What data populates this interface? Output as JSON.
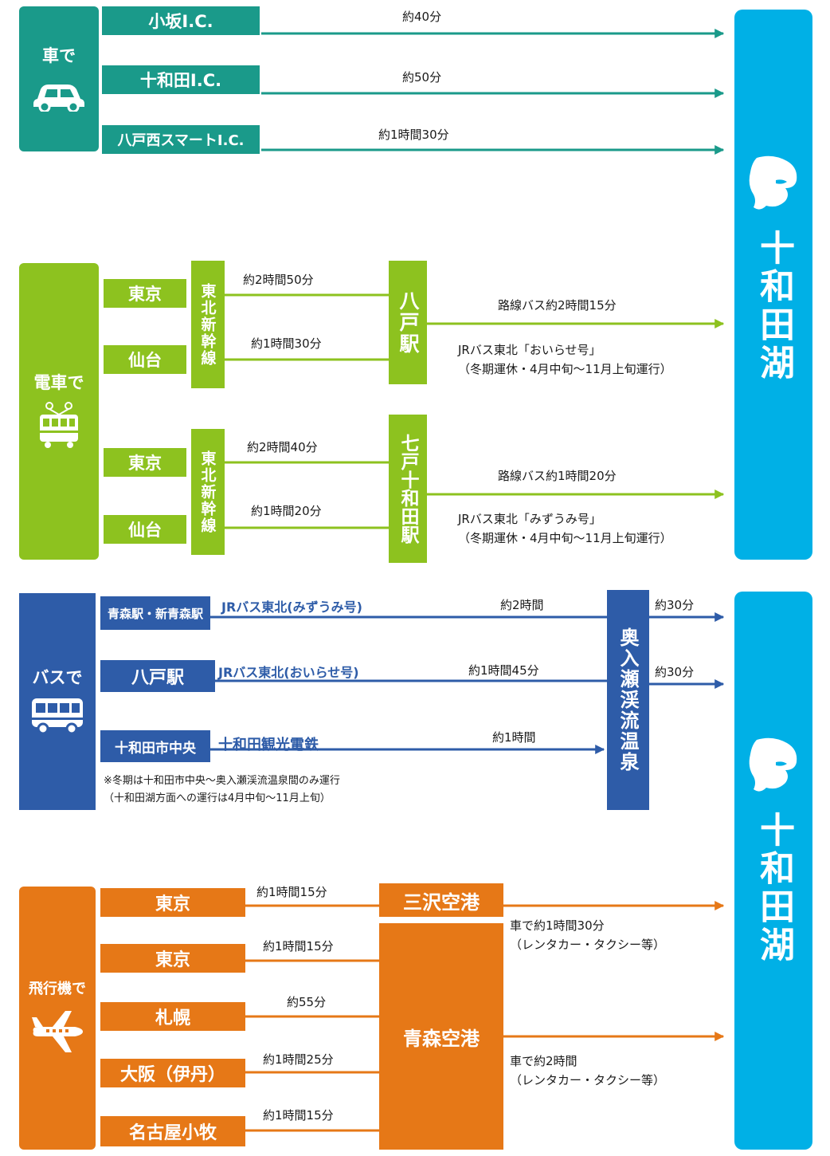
{
  "destination": {
    "name": "十和田湖",
    "icon": "mascot-icon",
    "color": "#00b0e6"
  },
  "car": {
    "label": "車で",
    "icon": "car-icon",
    "color": "#1a9a8a",
    "routes": [
      {
        "from": "小坂I.C.",
        "time": "約40分"
      },
      {
        "from": "十和田I.C.",
        "time": "約50分"
      },
      {
        "from": "八戸西スマートI.C.",
        "time": "約1時間30分"
      }
    ]
  },
  "train": {
    "label": "電車で",
    "icon": "train-icon",
    "color": "#8dc21f",
    "line": "東北新幹線",
    "groups": [
      {
        "station": "八戸駅",
        "origins": [
          {
            "name": "東京",
            "time": "約2時間50分"
          },
          {
            "name": "仙台",
            "time": "約1時間30分"
          }
        ],
        "bus_time": "路線バス約2時間15分",
        "note1": "JRバス東北「おいらせ号」",
        "note2": "（冬期運休・4月中旬～11月上旬運行）"
      },
      {
        "station": "七戸十和田駅",
        "origins": [
          {
            "name": "東京",
            "time": "約2時間40分"
          },
          {
            "name": "仙台",
            "time": "約1時間20分"
          }
        ],
        "bus_time": "路線バス約1時間20分",
        "note1": "JRバス東北「みずうみ号」",
        "note2": "（冬期運休・4月中旬～11月上旬運行）"
      }
    ]
  },
  "bus": {
    "label": "バスで",
    "icon": "bus-icon",
    "color": "#2e5ca8",
    "junction": "奥入瀬渓流温泉",
    "routes": [
      {
        "from": "青森駅・新青森駅",
        "line": "JRバス東北(みずうみ号)",
        "time": "約2時間",
        "after": "約30分"
      },
      {
        "from": "八戸駅",
        "line": "JRバス東北(おいらせ号)",
        "time": "約1時間45分",
        "after": "約30分"
      },
      {
        "from": "十和田市中央",
        "line": "十和田観光電鉄",
        "time": "約1時間"
      }
    ],
    "note1": "※冬期は十和田市中央～奥入瀬渓流温泉間のみ運行",
    "note2": "（十和田湖方面への運行は4月中旬～11月上旬）"
  },
  "plane": {
    "label": "飛行機で",
    "icon": "airplane-icon",
    "color": "#e67817",
    "airports": [
      {
        "name": "三沢空港",
        "note1": "車で約1時間30分",
        "note2": "（レンタカー・タクシー等）"
      },
      {
        "name": "青森空港",
        "note1": "車で約2時間",
        "note2": "（レンタカー・タクシー等）"
      }
    ],
    "origins": [
      {
        "name": "東京",
        "time": "約1時間15分"
      },
      {
        "name": "東京",
        "time": "約1時間15分"
      },
      {
        "name": "札幌",
        "time": "約55分"
      },
      {
        "name": "大阪（伊丹）",
        "time": "約1時間25分"
      },
      {
        "name": "名古屋小牧",
        "time": "約1時間15分"
      }
    ]
  }
}
